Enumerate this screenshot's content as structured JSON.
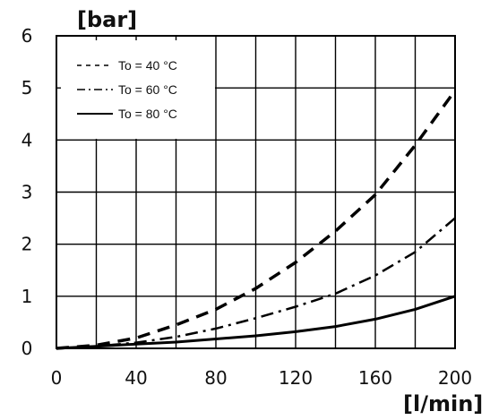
{
  "chart_data": {
    "type": "line",
    "title": "",
    "xlabel": "[l/min]",
    "ylabel": "[bar]",
    "xlim": [
      0,
      200
    ],
    "ylim": [
      0,
      6
    ],
    "x_ticks": [
      0,
      40,
      80,
      120,
      160,
      200
    ],
    "y_ticks": [
      0,
      1,
      2,
      3,
      4,
      5,
      6
    ],
    "grid": true,
    "legend_position": "top-left",
    "series": [
      {
        "name": "To = 40 °C",
        "style": "dashed",
        "color": "#000000",
        "x": [
          0,
          20,
          40,
          60,
          80,
          100,
          120,
          140,
          160,
          180,
          200
        ],
        "y": [
          0,
          0.06,
          0.2,
          0.45,
          0.75,
          1.15,
          1.65,
          2.25,
          2.95,
          3.9,
          4.95
        ]
      },
      {
        "name": "To = 60 °C",
        "style": "dash-dot",
        "color": "#000000",
        "x": [
          0,
          20,
          40,
          60,
          80,
          100,
          120,
          140,
          160,
          180,
          200
        ],
        "y": [
          0,
          0.04,
          0.11,
          0.22,
          0.38,
          0.58,
          0.8,
          1.05,
          1.4,
          1.85,
          2.5
        ]
      },
      {
        "name": "To = 80 °C",
        "style": "solid",
        "color": "#000000",
        "x": [
          0,
          20,
          40,
          60,
          80,
          100,
          120,
          140,
          160,
          180,
          200
        ],
        "y": [
          0,
          0.04,
          0.08,
          0.12,
          0.18,
          0.24,
          0.32,
          0.42,
          0.56,
          0.75,
          1.0
        ]
      }
    ]
  }
}
